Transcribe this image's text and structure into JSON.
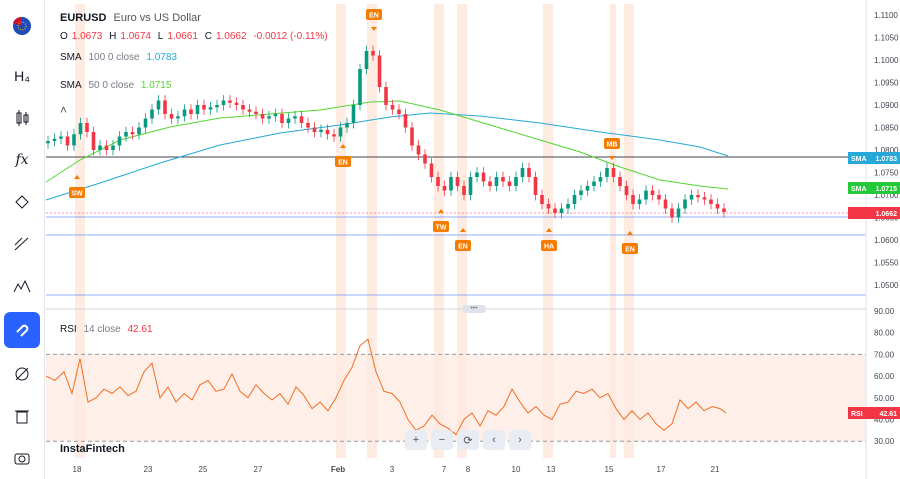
{
  "symbol": {
    "ticker": "EURUSD",
    "name": "Euro vs US Dollar",
    "flag_icon": "eu-us-flag-icon"
  },
  "ohlc": {
    "o_label": "O",
    "o": "1.0673",
    "h_label": "H",
    "h": "1.0674",
    "l_label": "L",
    "l": "1.0661",
    "c_label": "C",
    "c": "1.0662",
    "change": "-0.0012 (-0.11%)"
  },
  "sma100_legend": {
    "name": "SMA",
    "params": "100  0  close",
    "value": "1.0783",
    "color": "#26a8d8"
  },
  "sma50_legend": {
    "name": "SMA",
    "params": "50  0  close",
    "value": "1.0715",
    "color": "#54d630"
  },
  "rsi_legend": {
    "name": "RSI",
    "params": "14  close",
    "value": "42.61",
    "color": "#f26d21"
  },
  "price_axis": {
    "ticks": [
      "1.1100",
      "1.1050",
      "1.1000",
      "1.0950",
      "1.0900",
      "1.0850",
      "1.0800",
      "1.0750",
      "1.0700",
      "1.0650",
      "1.0600",
      "1.0550",
      "1.0500"
    ]
  },
  "rsi_axis": {
    "ticks": [
      "90.00",
      "80.00",
      "70.00",
      "60.00",
      "50.00",
      "40.00",
      "30.00"
    ]
  },
  "time_axis": {
    "ticks": [
      "18",
      "23",
      "25",
      "27",
      "Feb",
      "3",
      "7",
      "8",
      "10",
      "13",
      "15",
      "17",
      "21"
    ]
  },
  "price_badges": {
    "sma100": {
      "label": "SMA",
      "value": "1.0783",
      "color": "#26a8d8"
    },
    "sma50": {
      "label": "SMA",
      "value": "1.0715",
      "color": "#23c93a"
    },
    "last": {
      "value": "1.0662",
      "color": "#f23645"
    }
  },
  "rsi_badge": {
    "label": "RSI",
    "value": "42.61",
    "color": "#f23645"
  },
  "events": [
    {
      "code": "SW"
    },
    {
      "code": "EN"
    },
    {
      "code": "EN"
    },
    {
      "code": "TW"
    },
    {
      "code": "EN"
    },
    {
      "code": "HA"
    },
    {
      "code": "MB"
    },
    {
      "code": "EN"
    }
  ],
  "colors": {
    "up": "#089981",
    "down": "#f23645",
    "sma100": "#26a8d8",
    "sma50": "#54d630",
    "rsi": "#f26d21",
    "event": "#f57c00"
  },
  "sidebar": {
    "tools": [
      {
        "icon": "eu-us-flag-icon"
      },
      {
        "icon": "chart-type-h4-icon"
      },
      {
        "icon": "candles-icon"
      },
      {
        "icon": "indicators-fx-icon"
      },
      {
        "icon": "drawing-tools-icon"
      },
      {
        "icon": "trend-line-icon"
      },
      {
        "icon": "patterns-icon"
      },
      {
        "icon": "magnet-icon"
      },
      {
        "icon": "hide-drawings-icon"
      },
      {
        "icon": "delete-drawings-icon"
      },
      {
        "icon": "screenshot-icon"
      }
    ],
    "h4_label": "H₄",
    "fx_label": "fx"
  },
  "nav": {
    "zoom_in": "+",
    "zoom_out": "−",
    "reset": "⟳",
    "back": "‹",
    "forward": "›"
  },
  "brand": "InstaFintech"
}
